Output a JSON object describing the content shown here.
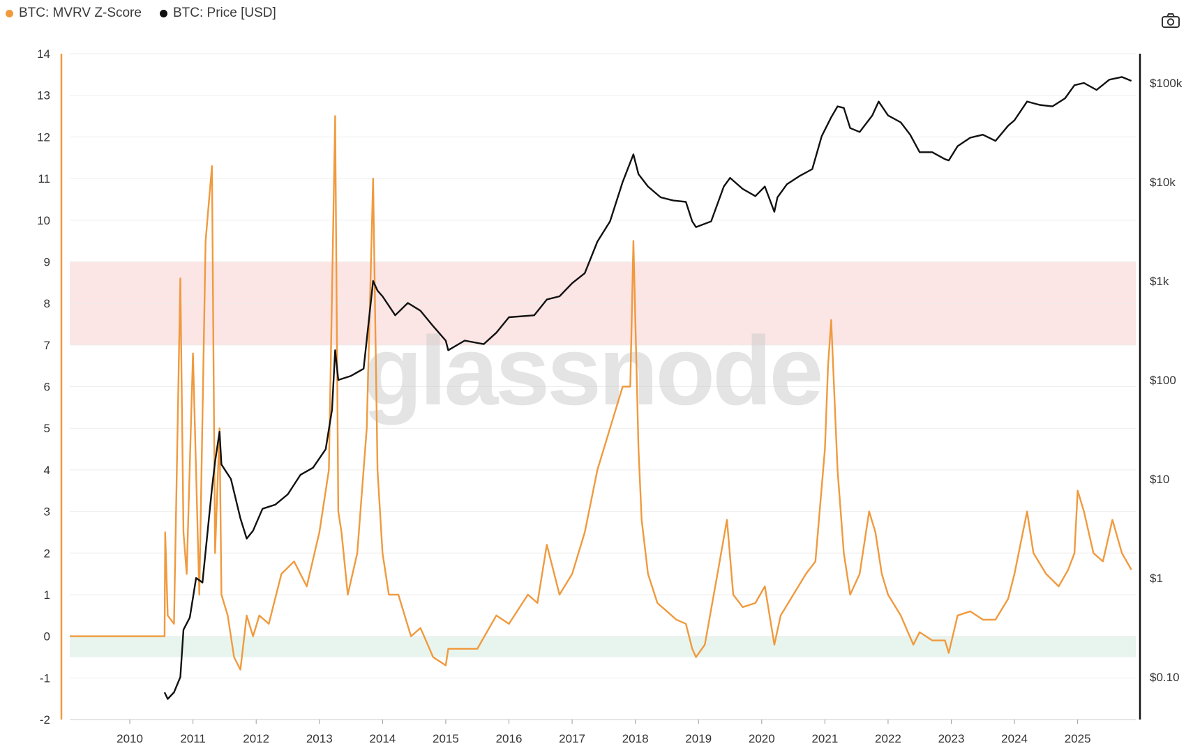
{
  "legend": {
    "z_label": "BTC: MVRV Z-Score",
    "price_label": "BTC: Price [USD]"
  },
  "toolbar": {
    "camera_icon": "camera-icon"
  },
  "watermark": "glassnode",
  "colors": {
    "zscore": "#f09a3e",
    "price": "#111111",
    "red_band": "#fbe5e5",
    "green_band": "#e8f5ee",
    "grid": "#eeeeee"
  },
  "chart_data": {
    "type": "line",
    "title": "",
    "xlabel": "",
    "ylabel_left": "",
    "ylabel_right": "",
    "x_ticks": [
      "2010",
      "2011",
      "2012",
      "2013",
      "2014",
      "2015",
      "2016",
      "2017",
      "2018",
      "2019",
      "2020",
      "2021",
      "2022",
      "2023",
      "2024",
      "2025"
    ],
    "y_left_ticks": [
      "14",
      "13",
      "12",
      "11",
      "10",
      "9",
      "8",
      "7",
      "6",
      "5",
      "4",
      "3",
      "2",
      "1",
      "0",
      "-1",
      "-2"
    ],
    "y_left_range": [
      -2,
      14
    ],
    "y_right_ticks": [
      "$100k",
      "$10k",
      "$1k",
      "$100",
      "$10",
      "$1",
      "$0.10"
    ],
    "y_right_scale": "log",
    "y_right_range": [
      0.04,
      200000
    ],
    "bands": [
      {
        "name": "red-zone",
        "from": 7,
        "to": 9
      },
      {
        "name": "green-zone",
        "from": -0.5,
        "to": 0
      }
    ],
    "series": [
      {
        "name": "BTC: MVRV Z-Score",
        "axis": "left",
        "x": [
          2009.05,
          2010.55,
          2010.56,
          2010.6,
          2010.7,
          2010.8,
          2010.85,
          2010.9,
          2011.0,
          2011.1,
          2011.2,
          2011.3,
          2011.35,
          2011.42,
          2011.45,
          2011.55,
          2011.65,
          2011.75,
          2011.85,
          2011.95,
          2012.05,
          2012.2,
          2012.4,
          2012.6,
          2012.8,
          2013.0,
          2013.15,
          2013.25,
          2013.3,
          2013.35,
          2013.45,
          2013.6,
          2013.75,
          2013.85,
          2013.92,
          2014.0,
          2014.1,
          2014.25,
          2014.45,
          2014.6,
          2014.8,
          2015.0,
          2015.04,
          2015.2,
          2015.5,
          2015.8,
          2016.0,
          2016.3,
          2016.45,
          2016.6,
          2016.8,
          2017.0,
          2017.2,
          2017.4,
          2017.6,
          2017.8,
          2017.92,
          2017.97,
          2018.05,
          2018.1,
          2018.2,
          2018.35,
          2018.5,
          2018.65,
          2018.8,
          2018.9,
          2018.96,
          2019.1,
          2019.3,
          2019.45,
          2019.55,
          2019.7,
          2019.9,
          2020.05,
          2020.2,
          2020.3,
          2020.5,
          2020.7,
          2020.85,
          2021.0,
          2021.05,
          2021.1,
          2021.2,
          2021.3,
          2021.4,
          2021.55,
          2021.7,
          2021.8,
          2021.9,
          2022.0,
          2022.2,
          2022.4,
          2022.5,
          2022.7,
          2022.9,
          2022.96,
          2023.1,
          2023.3,
          2023.5,
          2023.7,
          2023.9,
          2024.0,
          2024.2,
          2024.3,
          2024.5,
          2024.7,
          2024.85,
          2024.95,
          2025.0,
          2025.1,
          2025.25,
          2025.4,
          2025.55,
          2025.7,
          2025.85
        ],
        "values": [
          0,
          0,
          2.5,
          0.5,
          0.3,
          8.6,
          2.5,
          1.5,
          6.8,
          1.0,
          9.5,
          11.3,
          2.0,
          5.0,
          1.0,
          0.5,
          -0.5,
          -0.8,
          0.5,
          0.0,
          0.5,
          0.3,
          1.5,
          1.8,
          1.2,
          2.5,
          4.0,
          12.5,
          3.0,
          2.5,
          1.0,
          2.0,
          5.0,
          11.0,
          4.0,
          2.0,
          1.0,
          1.0,
          0.0,
          0.2,
          -0.5,
          -0.7,
          -0.3,
          -0.3,
          -0.3,
          0.5,
          0.3,
          1.0,
          0.8,
          2.2,
          1.0,
          1.5,
          2.5,
          4.0,
          5.0,
          6.0,
          6.0,
          9.5,
          4.5,
          2.8,
          1.5,
          0.8,
          0.6,
          0.4,
          0.3,
          -0.3,
          -0.5,
          -0.2,
          1.5,
          2.8,
          1.0,
          0.7,
          0.8,
          1.2,
          -0.2,
          0.5,
          1.0,
          1.5,
          1.8,
          4.5,
          6.5,
          7.6,
          4.0,
          2.0,
          1.0,
          1.5,
          3.0,
          2.5,
          1.5,
          1.0,
          0.5,
          -0.2,
          0.1,
          -0.1,
          -0.1,
          -0.4,
          0.5,
          0.6,
          0.4,
          0.4,
          0.9,
          1.5,
          3.0,
          2.0,
          1.5,
          1.2,
          1.6,
          2.0,
          3.5,
          3.0,
          2.0,
          1.8,
          2.8,
          2.0,
          1.6
        ]
      },
      {
        "name": "BTC: Price [USD]",
        "axis": "right",
        "x": [
          2010.55,
          2010.6,
          2010.7,
          2010.8,
          2010.85,
          2010.95,
          2011.05,
          2011.15,
          2011.3,
          2011.35,
          2011.42,
          2011.45,
          2011.6,
          2011.75,
          2011.85,
          2011.95,
          2012.1,
          2012.3,
          2012.5,
          2012.7,
          2012.9,
          2013.1,
          2013.2,
          2013.25,
          2013.3,
          2013.5,
          2013.7,
          2013.85,
          2013.92,
          2014.0,
          2014.2,
          2014.4,
          2014.6,
          2014.8,
          2015.0,
          2015.04,
          2015.3,
          2015.6,
          2015.8,
          2016.0,
          2016.4,
          2016.6,
          2016.8,
          2017.0,
          2017.2,
          2017.4,
          2017.6,
          2017.8,
          2017.97,
          2018.05,
          2018.2,
          2018.4,
          2018.6,
          2018.8,
          2018.9,
          2018.96,
          2019.2,
          2019.4,
          2019.5,
          2019.7,
          2019.9,
          2020.05,
          2020.2,
          2020.25,
          2020.4,
          2020.6,
          2020.8,
          2020.95,
          2021.1,
          2021.2,
          2021.3,
          2021.4,
          2021.55,
          2021.75,
          2021.85,
          2022.0,
          2022.2,
          2022.35,
          2022.5,
          2022.7,
          2022.9,
          2022.96,
          2023.1,
          2023.3,
          2023.5,
          2023.7,
          2023.9,
          2024.0,
          2024.2,
          2024.4,
          2024.6,
          2024.8,
          2024.95,
          2025.1,
          2025.3,
          2025.5,
          2025.7,
          2025.85
        ],
        "values": [
          0.07,
          0.06,
          0.07,
          0.1,
          0.3,
          0.4,
          1.0,
          0.9,
          8,
          15,
          30,
          14,
          10,
          4,
          2.5,
          3,
          5,
          5.5,
          7,
          11,
          13,
          20,
          50,
          200,
          100,
          110,
          130,
          1000,
          800,
          700,
          450,
          600,
          500,
          350,
          250,
          200,
          250,
          230,
          300,
          430,
          450,
          650,
          700,
          950,
          1200,
          2500,
          4000,
          10000,
          19000,
          12000,
          9000,
          7000,
          6500,
          6300,
          4000,
          3500,
          4000,
          9000,
          11000,
          8500,
          7200,
          9000,
          5000,
          7000,
          9500,
          11500,
          13500,
          29000,
          45000,
          58000,
          56000,
          35000,
          32000,
          47000,
          65000,
          47000,
          40000,
          30000,
          20000,
          20000,
          17000,
          16500,
          23000,
          28000,
          30000,
          26000,
          37000,
          42000,
          65000,
          60000,
          58000,
          70000,
          95000,
          100000,
          85000,
          108000,
          115000,
          105000
        ]
      }
    ]
  }
}
